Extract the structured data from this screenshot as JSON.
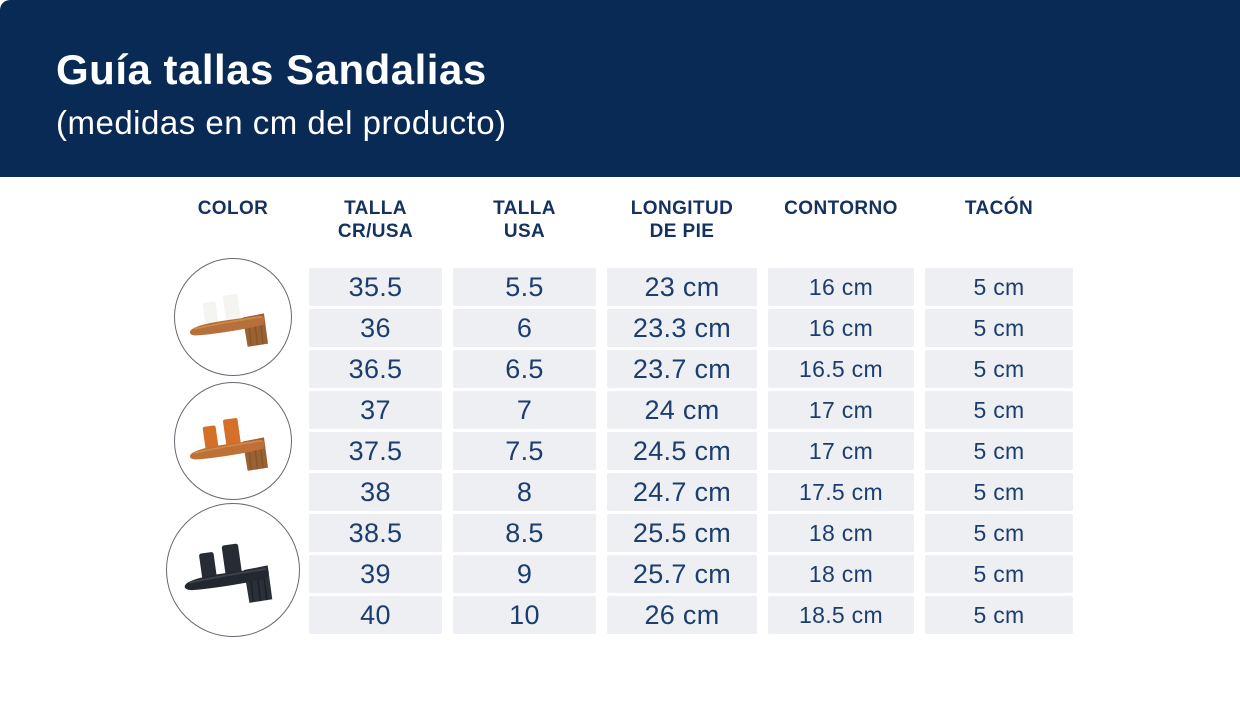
{
  "header": {
    "title": "Guía tallas Sandalias",
    "subtitle": "(medidas en cm del producto)"
  },
  "table": {
    "columns": [
      {
        "line1": "COLOR",
        "line2": ""
      },
      {
        "line1": "TALLA",
        "line2": "CR/USA"
      },
      {
        "line1": "TALLA",
        "line2": "USA"
      },
      {
        "line1": "LONGITUD",
        "line2": "DE PIE"
      },
      {
        "line1": "CONTORNO",
        "line2": ""
      },
      {
        "line1": "TACÓN",
        "line2": ""
      }
    ],
    "rows": [
      {
        "talla_cr": "35.5",
        "talla_usa": "5.5",
        "longitud": "23 cm",
        "contorno": "16 cm",
        "tacon": "5 cm"
      },
      {
        "talla_cr": "36",
        "talla_usa": "6",
        "longitud": "23.3 cm",
        "contorno": "16 cm",
        "tacon": "5 cm"
      },
      {
        "talla_cr": "36.5",
        "talla_usa": "6.5",
        "longitud": "23.7 cm",
        "contorno": "16.5 cm",
        "tacon": "5 cm"
      },
      {
        "talla_cr": "37",
        "talla_usa": "7",
        "longitud": "24 cm",
        "contorno": "17 cm",
        "tacon": "5 cm"
      },
      {
        "talla_cr": "37.5",
        "talla_usa": "7.5",
        "longitud": "24.5 cm",
        "contorno": "17 cm",
        "tacon": "5 cm"
      },
      {
        "talla_cr": "38",
        "talla_usa": "8",
        "longitud": "24.7 cm",
        "contorno": "17.5 cm",
        "tacon": "5 cm"
      },
      {
        "talla_cr": "38.5",
        "talla_usa": "8.5",
        "longitud": "25.5 cm",
        "contorno": "18 cm",
        "tacon": "5 cm"
      },
      {
        "talla_cr": "39",
        "talla_usa": "9",
        "longitud": "25.7 cm",
        "contorno": "18 cm",
        "tacon": "5 cm"
      },
      {
        "talla_cr": "40",
        "talla_usa": "10",
        "longitud": "26 cm",
        "contorno": "18.5 cm",
        "tacon": "5 cm"
      }
    ]
  },
  "sandals": [
    {
      "label": "white-two-strap-heeled-sandal",
      "strap": "#f4f4f1",
      "strap_stroke": "#cfceca",
      "sole": "#b5703b",
      "insole": "#d0884a",
      "heel": "#9a6233",
      "grain": "#7c4c25"
    },
    {
      "label": "orange-two-strap-heeled-sandal",
      "strap": "#d4702a",
      "strap_stroke": "#a9561c",
      "sole": "#bf7037",
      "insole": "#d0884a",
      "heel": "#9a6233",
      "grain": "#7c4c25"
    },
    {
      "label": "black-two-strap-heeled-sandal",
      "strap": "#262b34",
      "strap_stroke": "#121620",
      "sole": "#23272f",
      "insole": "#3d424d",
      "heel": "#2a2f38",
      "grain": "#15181f"
    }
  ],
  "colors": {
    "band_navy": "#0a2a56",
    "table_text_navy": "#1c3e6e",
    "header_text_navy": "#14325f",
    "cell_background": "#edeff3",
    "circle_border": "#656a71"
  }
}
